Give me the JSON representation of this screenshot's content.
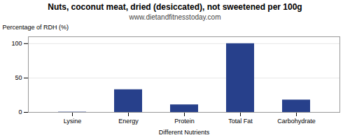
{
  "chart_data": {
    "type": "bar",
    "title": "Nuts, coconut meat, dried (desiccated), not sweetened per 100g",
    "subtitle": "www.dietandfitnesstoday.com",
    "ylabel": "Percentage of RDH (%)",
    "xlabel": "Different Nutrients",
    "categories": [
      "Lysine",
      "Energy",
      "Protein",
      "Total Fat",
      "Carbohydrate"
    ],
    "values": [
      0.4,
      33,
      11,
      100,
      18
    ],
    "color": "#27408B",
    "ylim": [
      0,
      110
    ],
    "yticks": [
      0,
      50,
      100
    ],
    "grid": true
  }
}
